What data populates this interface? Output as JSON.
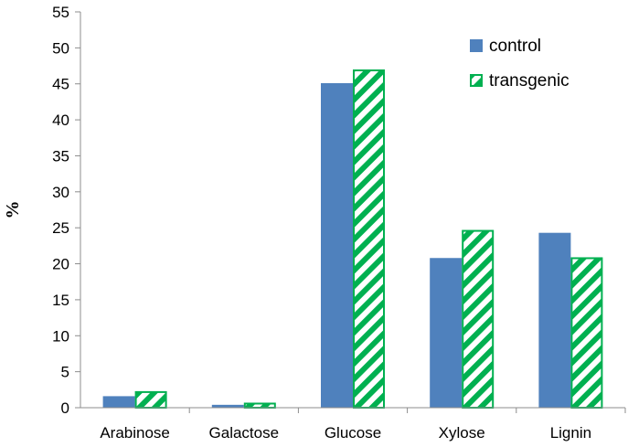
{
  "chart_data": {
    "type": "bar",
    "title": "",
    "xlabel": "",
    "ylabel": "%",
    "ylim": [
      0,
      55
    ],
    "yticks": [
      0,
      5,
      10,
      15,
      20,
      25,
      30,
      35,
      40,
      45,
      50,
      55
    ],
    "categories": [
      "Arabinose",
      "Galactose",
      "Glucose",
      "Xylose",
      "Lignin"
    ],
    "series": [
      {
        "name": "control",
        "values": [
          1.6,
          0.4,
          45.1,
          20.8,
          24.3
        ],
        "color": "#4f81bd",
        "fill": "solid"
      },
      {
        "name": "transgenic",
        "values": [
          2.3,
          0.7,
          47.0,
          24.7,
          20.9
        ],
        "color": "#00b050",
        "fill": "diagonal-hatch"
      }
    ],
    "grid": false,
    "legend_position": "top-right"
  }
}
